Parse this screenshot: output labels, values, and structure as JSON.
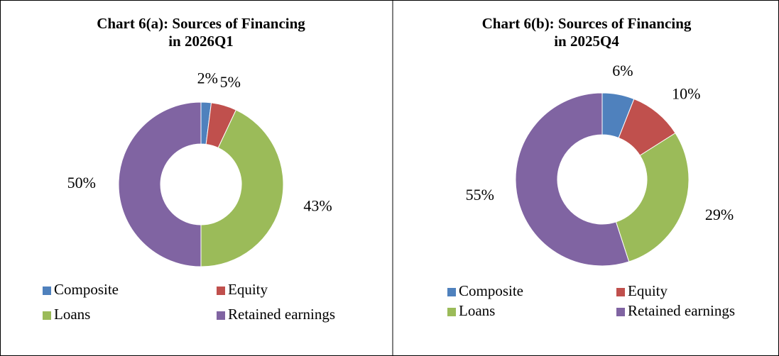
{
  "chart_data": [
    {
      "type": "donut",
      "title": "Chart 6(a): Sources of Financing",
      "subtitle": "in 2026Q1",
      "categories": [
        "Composite",
        "Equity",
        "Loans",
        "Retained earnings"
      ],
      "values": [
        2,
        5,
        43,
        50
      ],
      "value_labels": [
        "2%",
        "5%",
        "43%",
        "50%"
      ],
      "colors": [
        "#4f81bd",
        "#c0504d",
        "#9bbb59",
        "#8064a2"
      ],
      "legend": "bottom"
    },
    {
      "type": "donut",
      "title": "Chart 6(b): Sources of Financing",
      "subtitle": "in 2025Q4",
      "categories": [
        "Composite",
        "Equity",
        "Loans",
        "Retained earnings"
      ],
      "values": [
        6,
        10,
        29,
        55
      ],
      "value_labels": [
        "6%",
        "10%",
        "29%",
        "55%"
      ],
      "colors": [
        "#4f81bd",
        "#c0504d",
        "#9bbb59",
        "#8064a2"
      ],
      "legend": "bottom"
    }
  ]
}
